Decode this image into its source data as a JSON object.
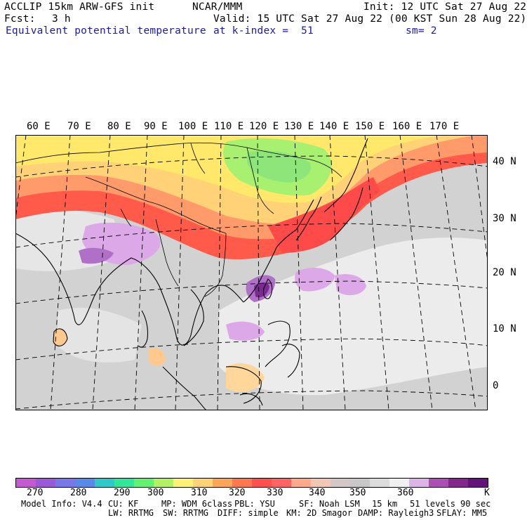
{
  "header": {
    "model": "ACCLIP 15km ARW-GFS init",
    "center": "NCAR/MMM",
    "init": "Init: 12 UTC Sat 27 Aug 22",
    "fcst_label": "Fcst:",
    "fcst_value": "3 h",
    "valid": "Valid: 15 UTC Sat 27 Aug 22 (00 KST Sun 28 Aug 22)",
    "field": "Equivalent potential temperature",
    "level": "at k-index =  51",
    "smooth": "sm= 2"
  },
  "map": {
    "longitude_labels": [
      "60 E",
      "70 E",
      "80 E",
      "90 E",
      "100 E",
      "110 E",
      "120 E",
      "130 E",
      "140 E",
      "150 E",
      "160 E",
      "170 E"
    ],
    "latitude_labels": [
      "40 N",
      "30 N",
      "20 N",
      "10 N",
      "0"
    ],
    "field_colors": {
      "land_low": "#ffd79a",
      "ocean_moist": "#d8d8d8",
      "ocean_pale": "#ececec",
      "warm": "#ff9a6b",
      "hot": "#ff4a4a",
      "yellow": "#ffe86a",
      "green": "#a8f070",
      "purple_light": "#dca8e8",
      "purple_mid": "#b070c8",
      "purple_dark": "#7a2a90"
    }
  },
  "colorbar": {
    "colors": [
      "#c45ad2",
      "#9a5ad8",
      "#7878e6",
      "#5a8ae8",
      "#32c8c8",
      "#32e69a",
      "#64f070",
      "#b4f064",
      "#fff078",
      "#ffd278",
      "#ffa55a",
      "#ff7850",
      "#ff5050",
      "#ff6464",
      "#ffaa8c",
      "#f0c8b4",
      "#d2c8c8",
      "#c8c8c8",
      "#dcdcdc",
      "#f0f0f0",
      "#dcb4e6",
      "#aa50b4",
      "#82288c",
      "#641478"
    ],
    "labels": [
      "270",
      "280",
      "290",
      "300",
      "310",
      "320",
      "330",
      "340",
      "350",
      "360"
    ],
    "unit": "K"
  },
  "model_info": {
    "line1": [
      "Model Info: V4.4",
      "CU: KF",
      "MP: WDM 6class",
      "PBL: YSU",
      "SF: Noah LSM",
      "15 km",
      "51 levels",
      "90 sec"
    ],
    "line2": [
      "LW: RRTMG",
      "SW: RRTMG",
      "DIFF: simple",
      "KM: 2D Smagor",
      "DAMP: Rayleigh3",
      "SFLAY: MM5"
    ]
  }
}
